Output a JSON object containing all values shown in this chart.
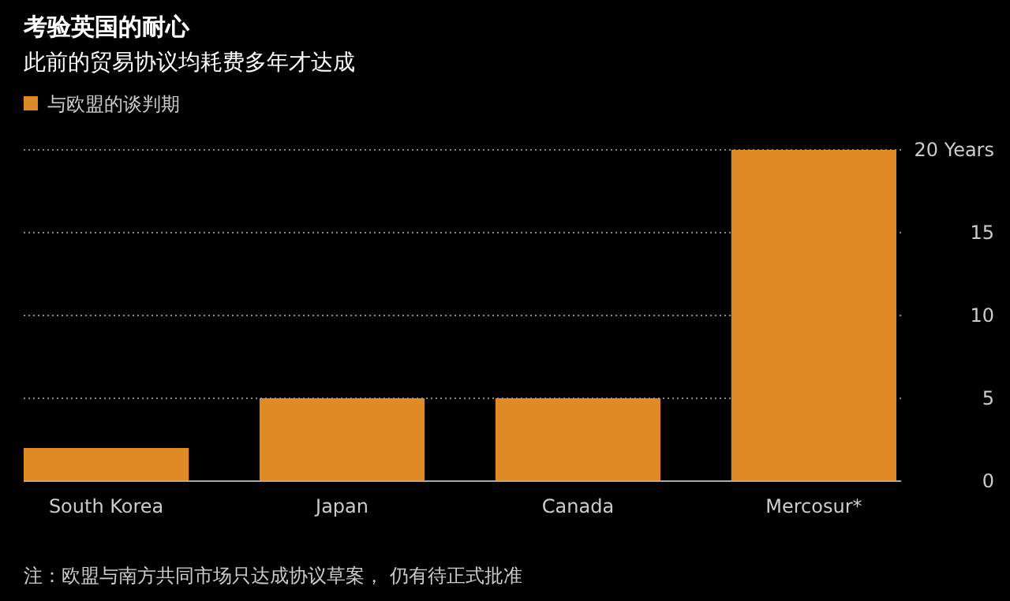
{
  "chart_data": {
    "type": "bar",
    "title": "考验英国的耐心",
    "subtitle": "此前的贸易协议均耗费多年才达成",
    "categories": [
      "South Korea",
      "Japan",
      "Canada",
      "Mercosur*"
    ],
    "series": [
      {
        "name": "与欧盟的谈判期",
        "color": "#e08a25",
        "values": [
          2,
          5,
          5,
          20
        ]
      }
    ],
    "ylim": [
      0,
      20
    ],
    "yticks": [
      0,
      5,
      10,
      15,
      {
        "value": 20,
        "label": "20 Years"
      }
    ],
    "grid": "y",
    "legend": "top left",
    "annotations": [
      "注：欧盟与南方共同市场只达成协议草案， 仍有待正式批准"
    ]
  }
}
